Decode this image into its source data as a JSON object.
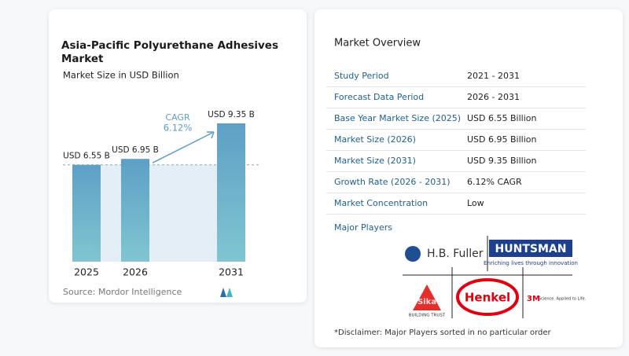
{
  "chart_data": {
    "type": "bar",
    "title": "Asia-Pacific Polyurethane Adhesives Market",
    "subtitle": "Market Size in USD Billion",
    "categories": [
      "2025",
      "2026",
      "2031"
    ],
    "values": [
      6.55,
      6.95,
      9.35
    ],
    "value_labels": [
      "USD 6.55 B",
      "USD 6.95 B",
      "USD 9.35 B"
    ],
    "color": "#5e9fc6",
    "annotation": {
      "label": "CAGR",
      "value": "6.12%"
    },
    "source": "Source:  Mordor Intelligence"
  },
  "overview": {
    "title": "Market Overview",
    "rows": [
      [
        "Study Period",
        "2021 - 2031"
      ],
      [
        "Forecast Data Period",
        "2026 - 2031"
      ],
      [
        "Base Year Market Size (2025)",
        "USD 6.55 Billion"
      ],
      [
        "Market Size (2026)",
        "USD 6.95 Billion"
      ],
      [
        "Market Size (2031)",
        "USD 9.35 Billion"
      ],
      [
        "Growth Rate (2026 - 2031)",
        "6.12% CAGR"
      ],
      [
        "Market Concentration",
        "Low"
      ]
    ],
    "players_title": "Major Players",
    "players": [
      {
        "name": "H.B. Fuller"
      },
      {
        "name": "HUNTSMAN",
        "tagline": "Enriching lives through innovation"
      },
      {
        "name": "Sika",
        "tagline": "BUILDING TRUST"
      },
      {
        "name": "Henkel"
      },
      {
        "name": "3M",
        "tagline": "Science. Applied to Life."
      }
    ],
    "disclaimer": "*Disclaimer: Major Players sorted in no particular order"
  }
}
